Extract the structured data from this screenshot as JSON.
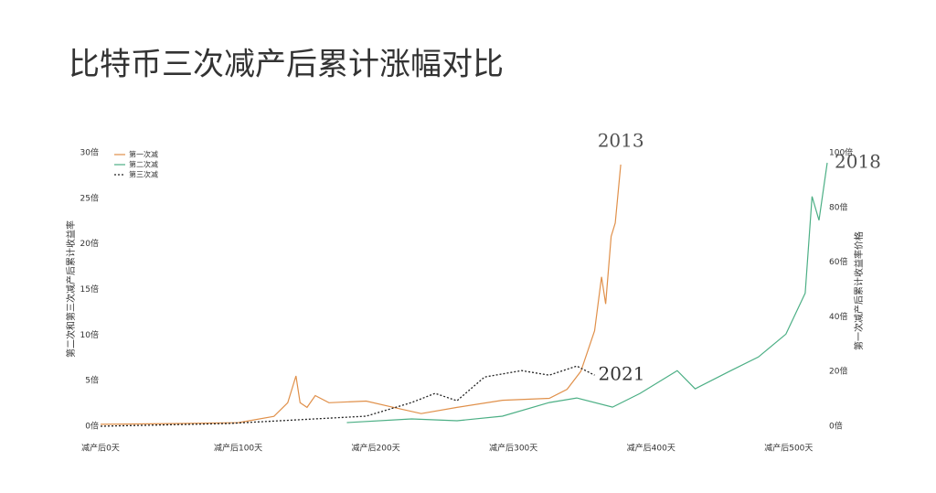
{
  "chart_data": {
    "type": "line",
    "title": "比特币三次减产后累计涨幅对比",
    "ylabel": "第二次和第三次减产后累计收益率",
    "y2label": "第一次减产后累计收益率价格",
    "legend": "upper left",
    "grid": false,
    "xlim": [
      0,
      528
    ],
    "xticks": [
      {
        "value": 0,
        "label": "减产后0天"
      },
      {
        "value": 100,
        "label": "减产后100天"
      },
      {
        "value": 200,
        "label": "减产后200天"
      },
      {
        "value": 300,
        "label": "减产后300天"
      },
      {
        "value": 400,
        "label": "减产后400天"
      },
      {
        "value": 500,
        "label": "减产后500天"
      }
    ],
    "ylim": [
      0,
      30
    ],
    "yticks": [
      {
        "value": 0,
        "label": "0倍"
      },
      {
        "value": 5,
        "label": "5倍"
      },
      {
        "value": 10,
        "label": "10倍"
      },
      {
        "value": 15,
        "label": "15倍"
      },
      {
        "value": 20,
        "label": "20倍"
      },
      {
        "value": 25,
        "label": "25倍"
      },
      {
        "value": 30,
        "label": "30倍"
      }
    ],
    "y2lim": [
      0,
      100
    ],
    "y2ticks": [
      {
        "value": 0,
        "label": "0倍"
      },
      {
        "value": 20,
        "label": "20倍"
      },
      {
        "value": 40,
        "label": "40倍"
      },
      {
        "value": 60,
        "label": "60倍"
      },
      {
        "value": 80,
        "label": "80倍"
      },
      {
        "value": 100,
        "label": "100倍"
      }
    ],
    "series": [
      {
        "name": "第一次减",
        "color": "#e0904a",
        "dash": false,
        "axis": "y2",
        "end_label": "2013",
        "x": [
          0,
          60,
          100,
          126,
          136,
          142,
          145,
          150,
          156,
          166,
          193,
          213,
          233,
          259,
          292,
          326,
          339,
          349,
          359,
          364,
          367,
          371,
          374,
          378
        ],
        "values": [
          0.7,
          1.0,
          1.3,
          3.6,
          8.6,
          18.4,
          8.6,
          6.9,
          11.2,
          8.6,
          9.2,
          6.9,
          4.6,
          6.9,
          9.5,
          10.2,
          13.5,
          20.1,
          34.9,
          54.6,
          44.7,
          69.4,
          74.3,
          95.7
        ]
      },
      {
        "name": "第二次减",
        "color": "#4caf85",
        "dash": false,
        "end_label": "2018",
        "x": [
          179,
          226,
          259,
          292,
          326,
          346,
          372,
          392,
          419,
          432,
          458,
          478,
          498,
          512,
          517,
          522,
          528
        ],
        "values": [
          0.4,
          0.8,
          0.6,
          1.1,
          2.6,
          3.1,
          2.1,
          3.6,
          6.1,
          4.1,
          6.1,
          7.6,
          10.1,
          14.6,
          25.2,
          22.6,
          28.9
        ]
      },
      {
        "name": "第三次减",
        "color": "#222222",
        "dash": true,
        "end_label": "2021",
        "x": [
          0,
          93,
          193,
          226,
          243,
          259,
          279,
          306,
          326,
          346,
          359
        ],
        "values": [
          0.0,
          0.3,
          1.1,
          2.6,
          3.6,
          2.8,
          5.4,
          6.1,
          5.6,
          6.6,
          5.6
        ]
      }
    ]
  }
}
